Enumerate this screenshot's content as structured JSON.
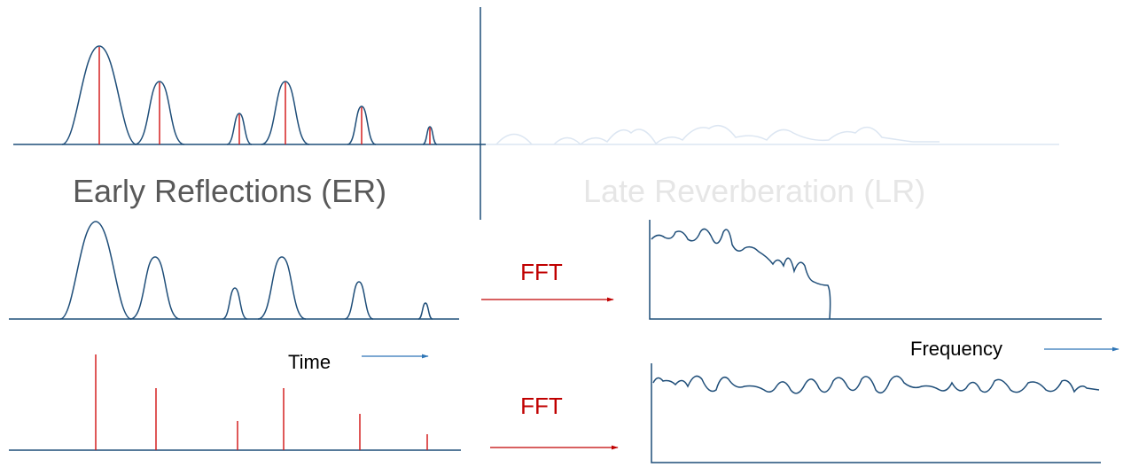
{
  "labels": {
    "early": "Early Reflections (ER)",
    "late": "Late Reverberation (LR)",
    "fft_top": "FFT",
    "fft_bottom": "FFT",
    "time": "Time",
    "frequency": "Frequency"
  }
}
